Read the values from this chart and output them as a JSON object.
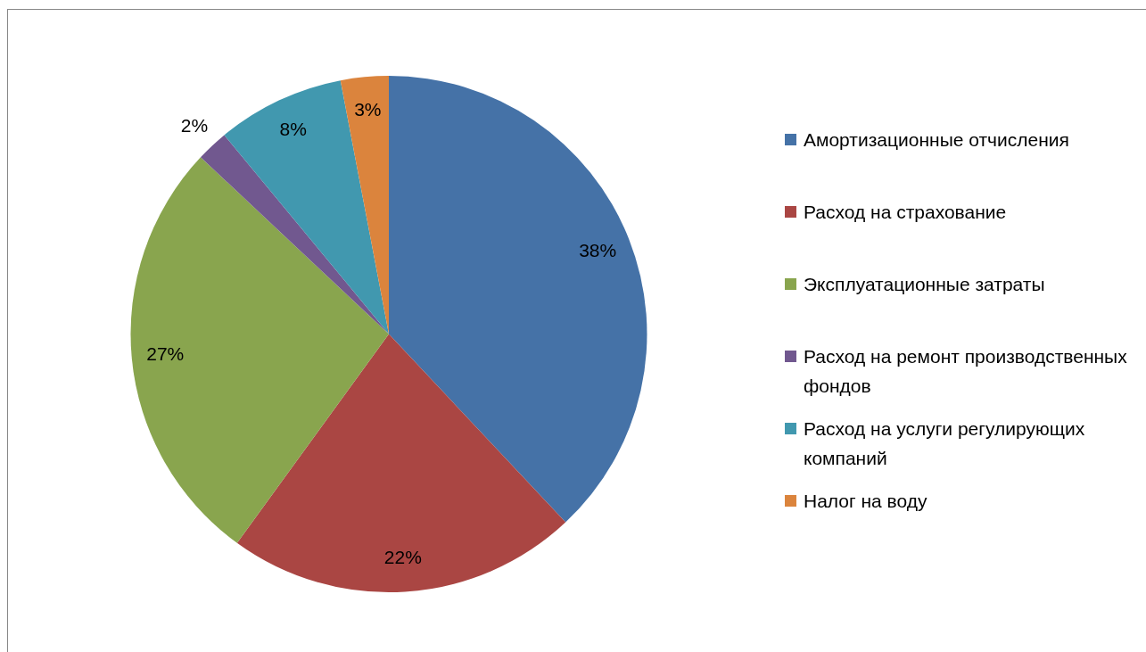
{
  "chart_data": {
    "type": "pie",
    "categories": [
      "Амортизационные отчисления",
      "Расход на страхование",
      "Эксплуатационные затраты",
      "Расход на ремонт производственных фондов",
      "Расход на услуги регулирующих компаний",
      "Налог на воду"
    ],
    "values": [
      38,
      22,
      27,
      2,
      8,
      3
    ],
    "colors": [
      "#4572a7",
      "#aa4643",
      "#89a54e",
      "#71588f",
      "#4198af",
      "#db843d"
    ],
    "value_labels": [
      "38%",
      "22%",
      "27%",
      "2%",
      "8%",
      "3%"
    ],
    "legend": "right"
  }
}
